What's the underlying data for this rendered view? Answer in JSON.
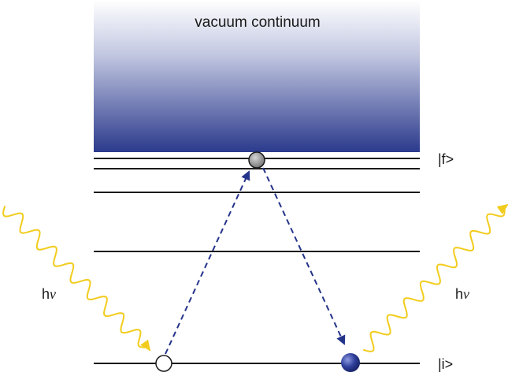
{
  "continuum": {
    "label": "vacuum continuum",
    "gradient_top": "#ffffff",
    "gradient_bottom": "#2b3a8c"
  },
  "levels": {
    "final_label": "|f>",
    "initial_label": "|i>"
  },
  "photons": {
    "incoming_h": "h",
    "incoming_nu": "ν",
    "outgoing_h": "h",
    "outgoing_nu": "ν",
    "color": "#f2cc1d"
  },
  "transitions": {
    "color": "#24338a"
  },
  "particles": {
    "virtual_state_color": "#8e8e8e",
    "initial_empty_color": "#ffffff",
    "final_electron_color": "#24338a"
  }
}
